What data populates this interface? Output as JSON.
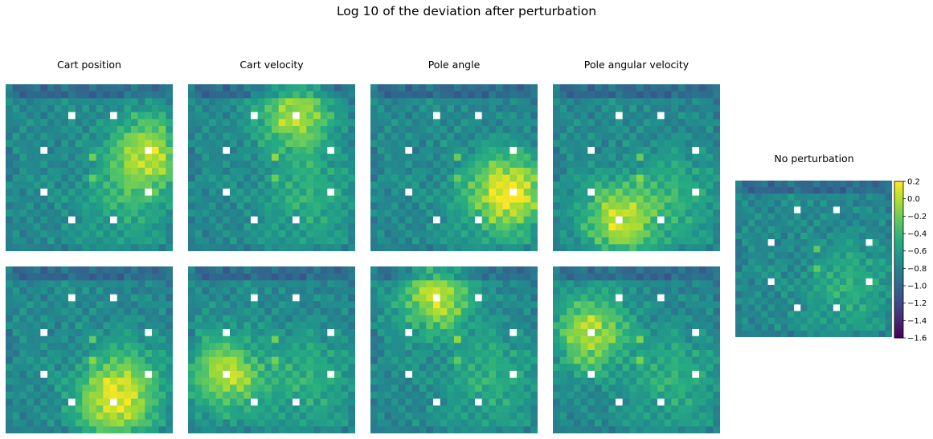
{
  "chart_data": {
    "type": "heatmap",
    "title": "Log 10 of the deviation after perturbation",
    "colormap": "viridis",
    "colorbar": {
      "min": -1.6,
      "max": 0.2,
      "ticks": [
        "0.2",
        "0.0",
        "−0.2",
        "−0.4",
        "−0.6",
        "−0.8",
        "−1.0",
        "−1.2",
        "−1.4",
        "−1.6"
      ]
    },
    "grid_size": 24,
    "columns": [
      "Cart position",
      "Cart velocity",
      "Pole angle",
      "Pole angular velocity"
    ],
    "reference_title": "No perturbation",
    "panels": [
      {
        "column": "Cart position",
        "row": 1,
        "perturbed_cell": [
          20,
          9
        ]
      },
      {
        "column": "Cart velocity",
        "row": 1,
        "perturbed_cell": [
          15,
          4
        ]
      },
      {
        "column": "Pole angle",
        "row": 1,
        "perturbed_cell": [
          20,
          15
        ]
      },
      {
        "column": "Pole angular velocity",
        "row": 1,
        "perturbed_cell": [
          9,
          19
        ]
      },
      {
        "column": "Cart position",
        "row": 2,
        "perturbed_cell": [
          15,
          19
        ]
      },
      {
        "column": "Cart velocity",
        "row": 2,
        "perturbed_cell": [
          5,
          15
        ]
      },
      {
        "column": "Pole angle",
        "row": 2,
        "perturbed_cell": [
          9,
          4
        ]
      },
      {
        "column": "Pole angular velocity",
        "row": 2,
        "perturbed_cell": [
          5,
          9
        ]
      }
    ],
    "obstacle_cells": [
      [
        9,
        4
      ],
      [
        15,
        4
      ],
      [
        5,
        9
      ],
      [
        20,
        9
      ],
      [
        5,
        15
      ],
      [
        20,
        15
      ],
      [
        9,
        19
      ],
      [
        15,
        19
      ]
    ],
    "marker_cells": [
      [
        12,
        10
      ],
      [
        12,
        13
      ]
    ],
    "colors": {
      "perturbation": "#b5202e",
      "obstacle": "#ffffff"
    }
  }
}
